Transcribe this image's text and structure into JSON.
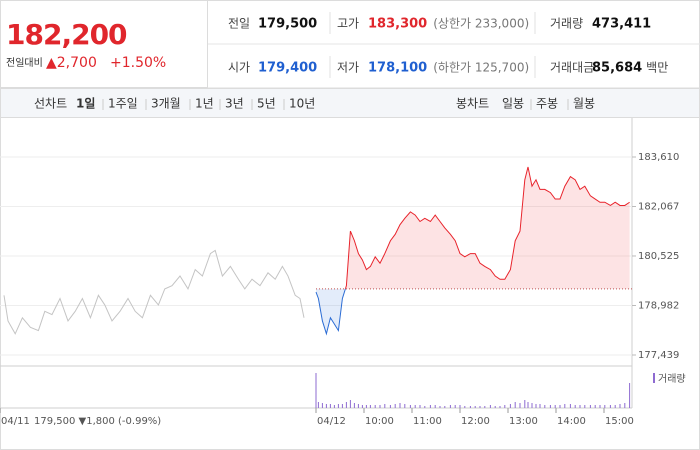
{
  "header": {
    "price": "182,200",
    "change_label": "전일대비",
    "change": "▲2,700",
    "change_pct": "+1.50%"
  },
  "summary": {
    "rows": [
      [
        {
          "label": "전일",
          "value": "179,500",
          "color": "#111"
        },
        {
          "label": "고가",
          "value": "183,300",
          "note": "(상한가 233,000)",
          "color": "#e0262c"
        },
        {
          "label": "거래량",
          "value": "473,411",
          "color": "#111"
        }
      ],
      [
        {
          "label": "시가",
          "value": "179,400",
          "color": "#1f5fd0"
        },
        {
          "label": "저가",
          "value": "178,100",
          "note": "(하한가 125,700)",
          "color": "#1f5fd0"
        },
        {
          "label": "거래대금",
          "value": "85,684",
          "unit": "백만",
          "color": "#111"
        }
      ]
    ]
  },
  "tabs": {
    "line_label": "선차트",
    "line": [
      "1일",
      "1주일",
      "3개월",
      "1년",
      "3년",
      "5년",
      "10년"
    ],
    "candle_label": "봉차트",
    "candle": [
      "일봉",
      "주봉",
      "월봉"
    ]
  },
  "chart_data": {
    "type": "line",
    "grid": true,
    "ylim": [
      177439,
      183610
    ],
    "yticks": [
      {
        "value": 177439,
        "label": "177,439"
      },
      {
        "value": 178982,
        "label": "178,982"
      },
      {
        "value": 180525,
        "label": "180,525"
      },
      {
        "value": 182067,
        "label": "182,067"
      },
      {
        "value": 183610,
        "label": "183,610"
      }
    ],
    "xlim": [
      0,
      790
    ],
    "xticks": [
      {
        "value": 0,
        "label": "04/11"
      },
      {
        "value": 395,
        "label": "04/12"
      },
      {
        "value": 455,
        "label": "10:00"
      },
      {
        "value": 515,
        "label": "11:00"
      },
      {
        "value": 575,
        "label": "12:00"
      },
      {
        "value": 635,
        "label": "13:00"
      },
      {
        "value": 695,
        "label": "14:00"
      },
      {
        "value": 755,
        "label": "15:00"
      }
    ],
    "baseline": 179500,
    "annotation": "179,500 ▼1,800 (-0.99%)",
    "series": [
      {
        "color": "#c4c4c4",
        "x": [
          5,
          10,
          19,
          28,
          38,
          48,
          56,
          65,
          75,
          85,
          94,
          103,
          113,
          123,
          131,
          140,
          150,
          160,
          169,
          178,
          188,
          198,
          206,
          215,
          225,
          235,
          244,
          253,
          263,
          269,
          278,
          288,
          298,
          306,
          315,
          325,
          335,
          344,
          353,
          360,
          369,
          375,
          380
        ],
        "values": [
          179300,
          178500,
          178100,
          178600,
          178300,
          178200,
          178800,
          178700,
          179200,
          178500,
          178800,
          179200,
          178600,
          179300,
          179000,
          178500,
          178800,
          179200,
          178800,
          178600,
          179300,
          179000,
          179500,
          179600,
          179900,
          179500,
          180100,
          179900,
          180600,
          180700,
          179900,
          180200,
          179800,
          179500,
          179800,
          179600,
          180000,
          179800,
          180200,
          179900,
          179300,
          179200,
          178600
        ]
      },
      {
        "color": "#e8232b",
        "color_below": "#2b6cd4",
        "x": [
          395,
          398,
          403,
          408,
          413,
          418,
          423,
          428,
          433,
          438,
          443,
          448,
          453,
          458,
          463,
          469,
          475,
          481,
          488,
          494,
          500,
          506,
          513,
          519,
          525,
          531,
          538,
          544,
          550,
          556,
          563,
          569,
          575,
          581,
          588,
          594,
          600,
          606,
          613,
          619,
          625,
          631,
          638,
          644,
          650,
          656,
          660,
          665,
          670,
          675,
          681,
          688,
          694,
          700,
          706,
          713,
          719,
          725,
          731,
          738,
          744,
          750,
          756,
          763,
          769,
          775,
          781,
          787
        ],
        "values": [
          179400,
          179200,
          178500,
          178100,
          178600,
          178400,
          178200,
          179200,
          179600,
          181300,
          181000,
          180600,
          180400,
          180100,
          180200,
          180500,
          180300,
          180600,
          181000,
          181200,
          181500,
          181700,
          181900,
          181800,
          181600,
          181700,
          181600,
          181800,
          181600,
          181400,
          181200,
          181000,
          180600,
          180500,
          180600,
          180600,
          180300,
          180200,
          180100,
          179900,
          179800,
          179800,
          180100,
          181000,
          181300,
          182900,
          183300,
          182700,
          182900,
          182600,
          182600,
          182500,
          182300,
          182300,
          182700,
          183000,
          182900,
          182600,
          182700,
          182400,
          182300,
          182200,
          182200,
          182100,
          182200,
          182100,
          182100,
          182200
        ]
      }
    ],
    "volume": {
      "name": "거래량",
      "color": "#8e6bd1",
      "ylim": [
        0,
        40
      ],
      "values": [
        35,
        6,
        5,
        4,
        4,
        3,
        4,
        4,
        6,
        8,
        5,
        4,
        3,
        3,
        3,
        3,
        3,
        4,
        3,
        4,
        5,
        4,
        3,
        3,
        3,
        2,
        3,
        3,
        2,
        2,
        3,
        3,
        3,
        2,
        2,
        2,
        2,
        2,
        3,
        2,
        2,
        3,
        4,
        6,
        5,
        8,
        6,
        5,
        4,
        4,
        3,
        3,
        3,
        3,
        4,
        4,
        3,
        3,
        3,
        3,
        3,
        3,
        3,
        3,
        3,
        4,
        5,
        25
      ]
    }
  }
}
